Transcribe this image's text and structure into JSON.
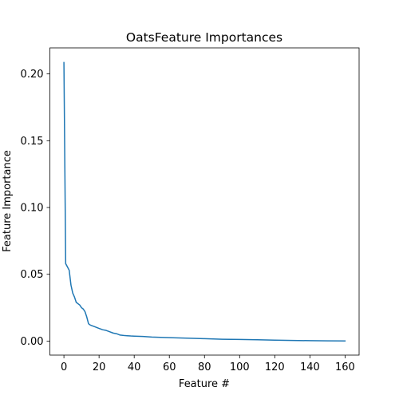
{
  "chart_data": {
    "type": "line",
    "title": "OatsFeature Importances",
    "xlabel": "Feature #",
    "ylabel": "Feature Importance",
    "xlim": [
      -8,
      168
    ],
    "ylim": [
      -0.0105,
      0.2195
    ],
    "xticks": [
      0,
      20,
      40,
      60,
      80,
      100,
      120,
      140,
      160
    ],
    "xtick_labels": [
      "0",
      "20",
      "40",
      "60",
      "80",
      "100",
      "120",
      "140",
      "160"
    ],
    "yticks": [
      0.0,
      0.05,
      0.1,
      0.15,
      0.2
    ],
    "ytick_labels": [
      "0.00",
      "0.05",
      "0.10",
      "0.15",
      "0.20"
    ],
    "grid": false,
    "series": [
      {
        "color": "#1f77b4",
        "x": [
          0,
          1,
          2,
          3,
          4,
          5,
          6,
          7,
          8,
          9,
          10,
          11,
          12,
          13,
          14,
          15,
          16,
          18,
          20,
          22,
          24,
          26,
          28,
          30,
          32,
          34,
          36,
          38,
          40,
          45,
          50,
          60,
          70,
          80,
          90,
          100,
          110,
          120,
          130,
          140,
          150,
          160
        ],
        "y": [
          0.2085,
          0.058,
          0.0555,
          0.053,
          0.042,
          0.036,
          0.033,
          0.029,
          0.028,
          0.027,
          0.025,
          0.024,
          0.022,
          0.018,
          0.013,
          0.012,
          0.0115,
          0.0105,
          0.0095,
          0.0085,
          0.008,
          0.007,
          0.006,
          0.0055,
          0.0045,
          0.0042,
          0.004,
          0.0038,
          0.0037,
          0.0035,
          0.003,
          0.0026,
          0.0022,
          0.0018,
          0.0014,
          0.0012,
          0.001,
          0.0007,
          0.0005,
          0.0003,
          0.0002,
          0.0001
        ]
      }
    ]
  }
}
